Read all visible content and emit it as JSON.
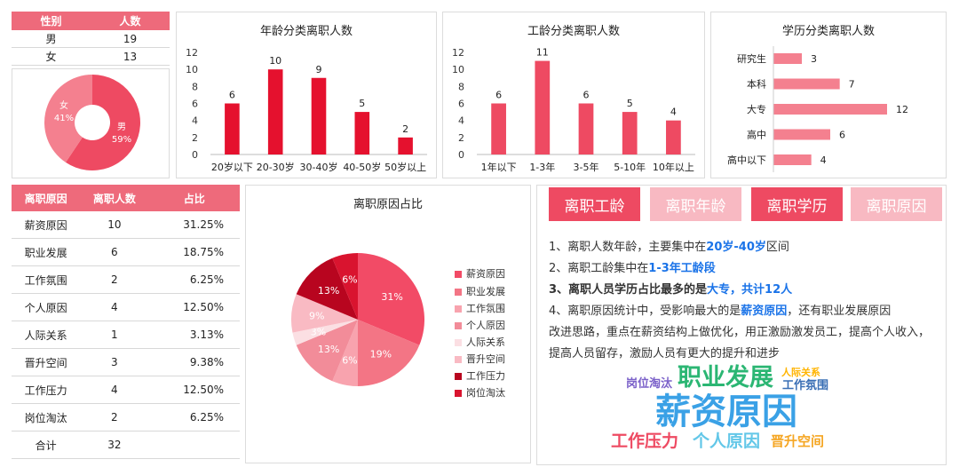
{
  "gender": {
    "headers": [
      "性别",
      "人数"
    ],
    "rows": [
      [
        "男",
        "19"
      ],
      [
        "女",
        "13"
      ]
    ],
    "donut": [
      {
        "label": "男",
        "pct": "59%",
        "value": 19,
        "color": "#ee4a62"
      },
      {
        "label": "女",
        "pct": "41%",
        "value": 13,
        "color": "#f4808f"
      }
    ]
  },
  "age_chart": {
    "title": "年龄分类离职人数",
    "yticks": [
      "12",
      "10",
      "8",
      "6",
      "4",
      "2",
      "0"
    ],
    "categories": [
      "20岁以下",
      "20-30岁",
      "30-40岁",
      "40-50岁",
      "50岁以上"
    ],
    "values": [
      6,
      10,
      9,
      5,
      2
    ],
    "labels": [
      "6",
      "10",
      "9",
      "5",
      "2"
    ],
    "color": "#e5112e"
  },
  "tenure_chart": {
    "title": "工龄分类离职人数",
    "yticks": [
      "12",
      "10",
      "8",
      "6",
      "4",
      "2",
      "0"
    ],
    "categories": [
      "1年以下",
      "1-3年",
      "3-5年",
      "5-10年",
      "10年以上"
    ],
    "values": [
      6,
      11,
      6,
      5,
      4
    ],
    "labels": [
      "6",
      "11",
      "6",
      "5",
      "4"
    ],
    "color": "#ee4a62"
  },
  "edu_chart": {
    "title": "学历分类离职人数",
    "categories": [
      "研究生",
      "本科",
      "大专",
      "高中",
      "高中以下"
    ],
    "values": [
      3,
      7,
      12,
      6,
      4
    ],
    "labels": [
      "3",
      "7",
      "12",
      "6",
      "4"
    ],
    "color": "#f4808f"
  },
  "reason_table": {
    "headers": [
      "离职原因",
      "离职人数",
      "占比"
    ],
    "rows": [
      [
        "薪资原因",
        "10",
        "31.25%"
      ],
      [
        "职业发展",
        "6",
        "18.75%"
      ],
      [
        "工作氛围",
        "2",
        "6.25%"
      ],
      [
        "个人原因",
        "4",
        "12.50%"
      ],
      [
        "人际关系",
        "1",
        "3.13%"
      ],
      [
        "晋升空间",
        "3",
        "9.38%"
      ],
      [
        "工作压力",
        "4",
        "12.50%"
      ],
      [
        "岗位淘汰",
        "2",
        "6.25%"
      ]
    ],
    "total": [
      "合计",
      "32"
    ]
  },
  "chart_data": [
    {
      "type": "bar",
      "title": "年龄分类离职人数",
      "categories": [
        "20岁以下",
        "20-30岁",
        "30-40岁",
        "40-50岁",
        "50岁以上"
      ],
      "values": [
        6,
        10,
        9,
        5,
        2
      ],
      "ylim": [
        0,
        12
      ]
    },
    {
      "type": "bar",
      "title": "工龄分类离职人数",
      "categories": [
        "1年以下",
        "1-3年",
        "3-5年",
        "5-10年",
        "10年以上"
      ],
      "values": [
        6,
        11,
        6,
        5,
        4
      ],
      "ylim": [
        0,
        12
      ]
    },
    {
      "type": "bar",
      "orientation": "horizontal",
      "title": "学历分类离职人数",
      "categories": [
        "研究生",
        "本科",
        "大专",
        "高中",
        "高中以下"
      ],
      "values": [
        3,
        7,
        12,
        6,
        4
      ]
    },
    {
      "type": "pie",
      "categories": [
        "男",
        "女"
      ],
      "values": [
        59,
        41
      ]
    },
    {
      "type": "pie",
      "title": "离职原因占比",
      "categories": [
        "薪资原因",
        "职业发展",
        "工作氛围",
        "个人原因",
        "人际关系",
        "晋升空间",
        "工作压力",
        "岗位淘汰"
      ],
      "values": [
        31,
        19,
        6,
        13,
        3,
        9,
        13,
        6
      ],
      "legend": "right"
    }
  ],
  "reason_pie": {
    "title": "离职原因占比",
    "slices": [
      {
        "label": "薪资原因",
        "pct": "31%",
        "value": 10,
        "color": "#f24b66"
      },
      {
        "label": "职业发展",
        "pct": "19%",
        "value": 6,
        "color": "#f37585"
      },
      {
        "label": "工作氛围",
        "pct": "6%",
        "value": 2,
        "color": "#f8a3ae"
      },
      {
        "label": "个人原因",
        "pct": "13%",
        "value": 4,
        "color": "#f28c99"
      },
      {
        "label": "人际关系",
        "pct": "3%",
        "value": 1,
        "color": "#fbdfe3"
      },
      {
        "label": "晋升空间",
        "pct": "9%",
        "value": 3,
        "color": "#f9bac3"
      },
      {
        "label": "工作压力",
        "pct": "13%",
        "value": 4,
        "color": "#b8051f"
      },
      {
        "label": "岗位淘汰",
        "pct": "6%",
        "value": 2,
        "color": "#d9142f"
      }
    ]
  },
  "tabs": {
    "items": [
      {
        "label": "离职工龄",
        "color": "#ee4a62"
      },
      {
        "label": "离职年龄",
        "color": "#f8b9c2"
      },
      {
        "label": "离职学历",
        "color": "#ee4a62"
      },
      {
        "label": "离职原因",
        "color": "#f8b9c2"
      }
    ]
  },
  "analysis": {
    "line1": {
      "pre": "1、离职人数年龄，主要集中在",
      "hl": "20岁-40岁",
      "post": "区间"
    },
    "line2": {
      "pre": "2、离职工龄集中在",
      "hl": "1-3年工龄段"
    },
    "line3": {
      "pre": "3、离职人员学历占比最多的是",
      "hl": "大专，共计12人"
    },
    "line4": {
      "pre": "4、离职原因统计中，受影响最大的是",
      "hl": "薪资原因",
      "post": "，还有职业发展原因"
    },
    "line5": "改进思路，重点在薪资结构上做优化，用正激励激发员工，提高个人收入，",
    "line6": "提高人员留存，激励人员有更大的提升和进步"
  },
  "wordcloud": {
    "words": [
      {
        "text": "职业发展",
        "color": "#2bb673"
      },
      {
        "text": "人际关系",
        "color": "#ffb400"
      },
      {
        "text": "岗位淘汰",
        "color": "#7b61c9"
      },
      {
        "text": "工作氛围",
        "color": "#3a6fb5"
      },
      {
        "text": "薪资原因",
        "color": "#3aa1e6"
      },
      {
        "text": "工作压力",
        "color": "#ee4a62"
      },
      {
        "text": "个人原因",
        "color": "#63c7e8"
      },
      {
        "text": "晋升空间",
        "color": "#f5a623"
      }
    ]
  }
}
